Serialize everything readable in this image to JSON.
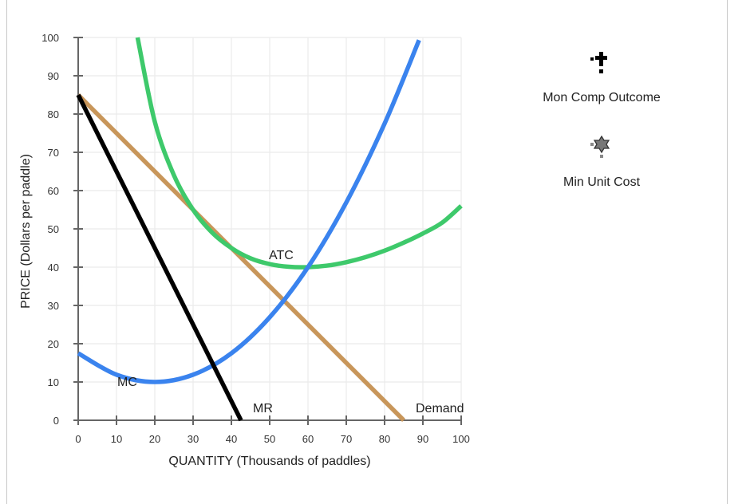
{
  "chart_data": {
    "type": "line",
    "title": "",
    "xlabel": "QUANTITY (Thousands of paddles)",
    "ylabel": "PRICE (Dollars per paddle)",
    "xlim": [
      0,
      100
    ],
    "ylim": [
      0,
      100
    ],
    "x_ticks": [
      0,
      10,
      20,
      30,
      40,
      50,
      60,
      70,
      80,
      90,
      100
    ],
    "y_ticks": [
      0,
      10,
      20,
      30,
      40,
      50,
      60,
      70,
      80,
      90,
      100
    ],
    "grid": true,
    "legend_position": "right",
    "series": [
      {
        "name": "Demand",
        "color": "#c8965a",
        "points": [
          [
            0,
            85
          ],
          [
            85,
            0
          ]
        ]
      },
      {
        "name": "MR",
        "color": "#000000",
        "points": [
          [
            0,
            85
          ],
          [
            42.5,
            0
          ]
        ]
      },
      {
        "name": "MC",
        "color": "#3a83ee",
        "points": [
          [
            0,
            17.5
          ],
          [
            10,
            11.9
          ],
          [
            20,
            10
          ],
          [
            30,
            11.9
          ],
          [
            40,
            17.5
          ],
          [
            50,
            26.9
          ],
          [
            60,
            40
          ],
          [
            70,
            56.9
          ],
          [
            80,
            77.5
          ],
          [
            89,
            99.3
          ]
        ]
      },
      {
        "name": "ATC",
        "color": "#3ec96b",
        "points": [
          [
            15.5,
            100
          ],
          [
            20,
            78
          ],
          [
            25,
            64
          ],
          [
            30,
            55
          ],
          [
            35,
            49
          ],
          [
            40,
            45
          ],
          [
            45,
            42.3
          ],
          [
            50,
            40.8
          ],
          [
            55,
            40.1
          ],
          [
            60,
            40
          ],
          [
            65,
            40.4
          ],
          [
            70,
            41.3
          ],
          [
            75,
            42.6
          ],
          [
            80,
            44.3
          ],
          [
            85,
            46.4
          ],
          [
            90,
            48.8
          ],
          [
            95,
            51.6
          ],
          [
            100,
            56
          ]
        ]
      }
    ],
    "annotations": [
      {
        "text": "MC",
        "x": 13,
        "y": 10
      },
      {
        "text": "ATC",
        "x": 53,
        "y": 42
      },
      {
        "text": "MR",
        "x": 49,
        "y": 2
      },
      {
        "text": "Demand",
        "x": 95,
        "y": 2
      }
    ],
    "legend": [
      {
        "label": "Mon Comp Outcome",
        "marker": "black-cross-with-dashes"
      },
      {
        "label": "Min Unit Cost",
        "marker": "gray-star-with-dashes"
      }
    ]
  },
  "axes": {
    "x_tick_labels": [
      "0",
      "10",
      "20",
      "30",
      "40",
      "50",
      "60",
      "70",
      "80",
      "90",
      "100"
    ],
    "y_tick_labels": [
      "0",
      "10",
      "20",
      "30",
      "40",
      "50",
      "60",
      "70",
      "80",
      "90",
      "100"
    ],
    "x_title": "QUANTITY (Thousands of paddles)",
    "y_title": "PRICE (Dollars per paddle)"
  },
  "labels": {
    "mc": "MC",
    "atc": "ATC",
    "mr": "MR",
    "demand": "Demand"
  },
  "legend": {
    "mon_comp": "Mon Comp Outcome",
    "min_cost": "Min Unit Cost"
  }
}
